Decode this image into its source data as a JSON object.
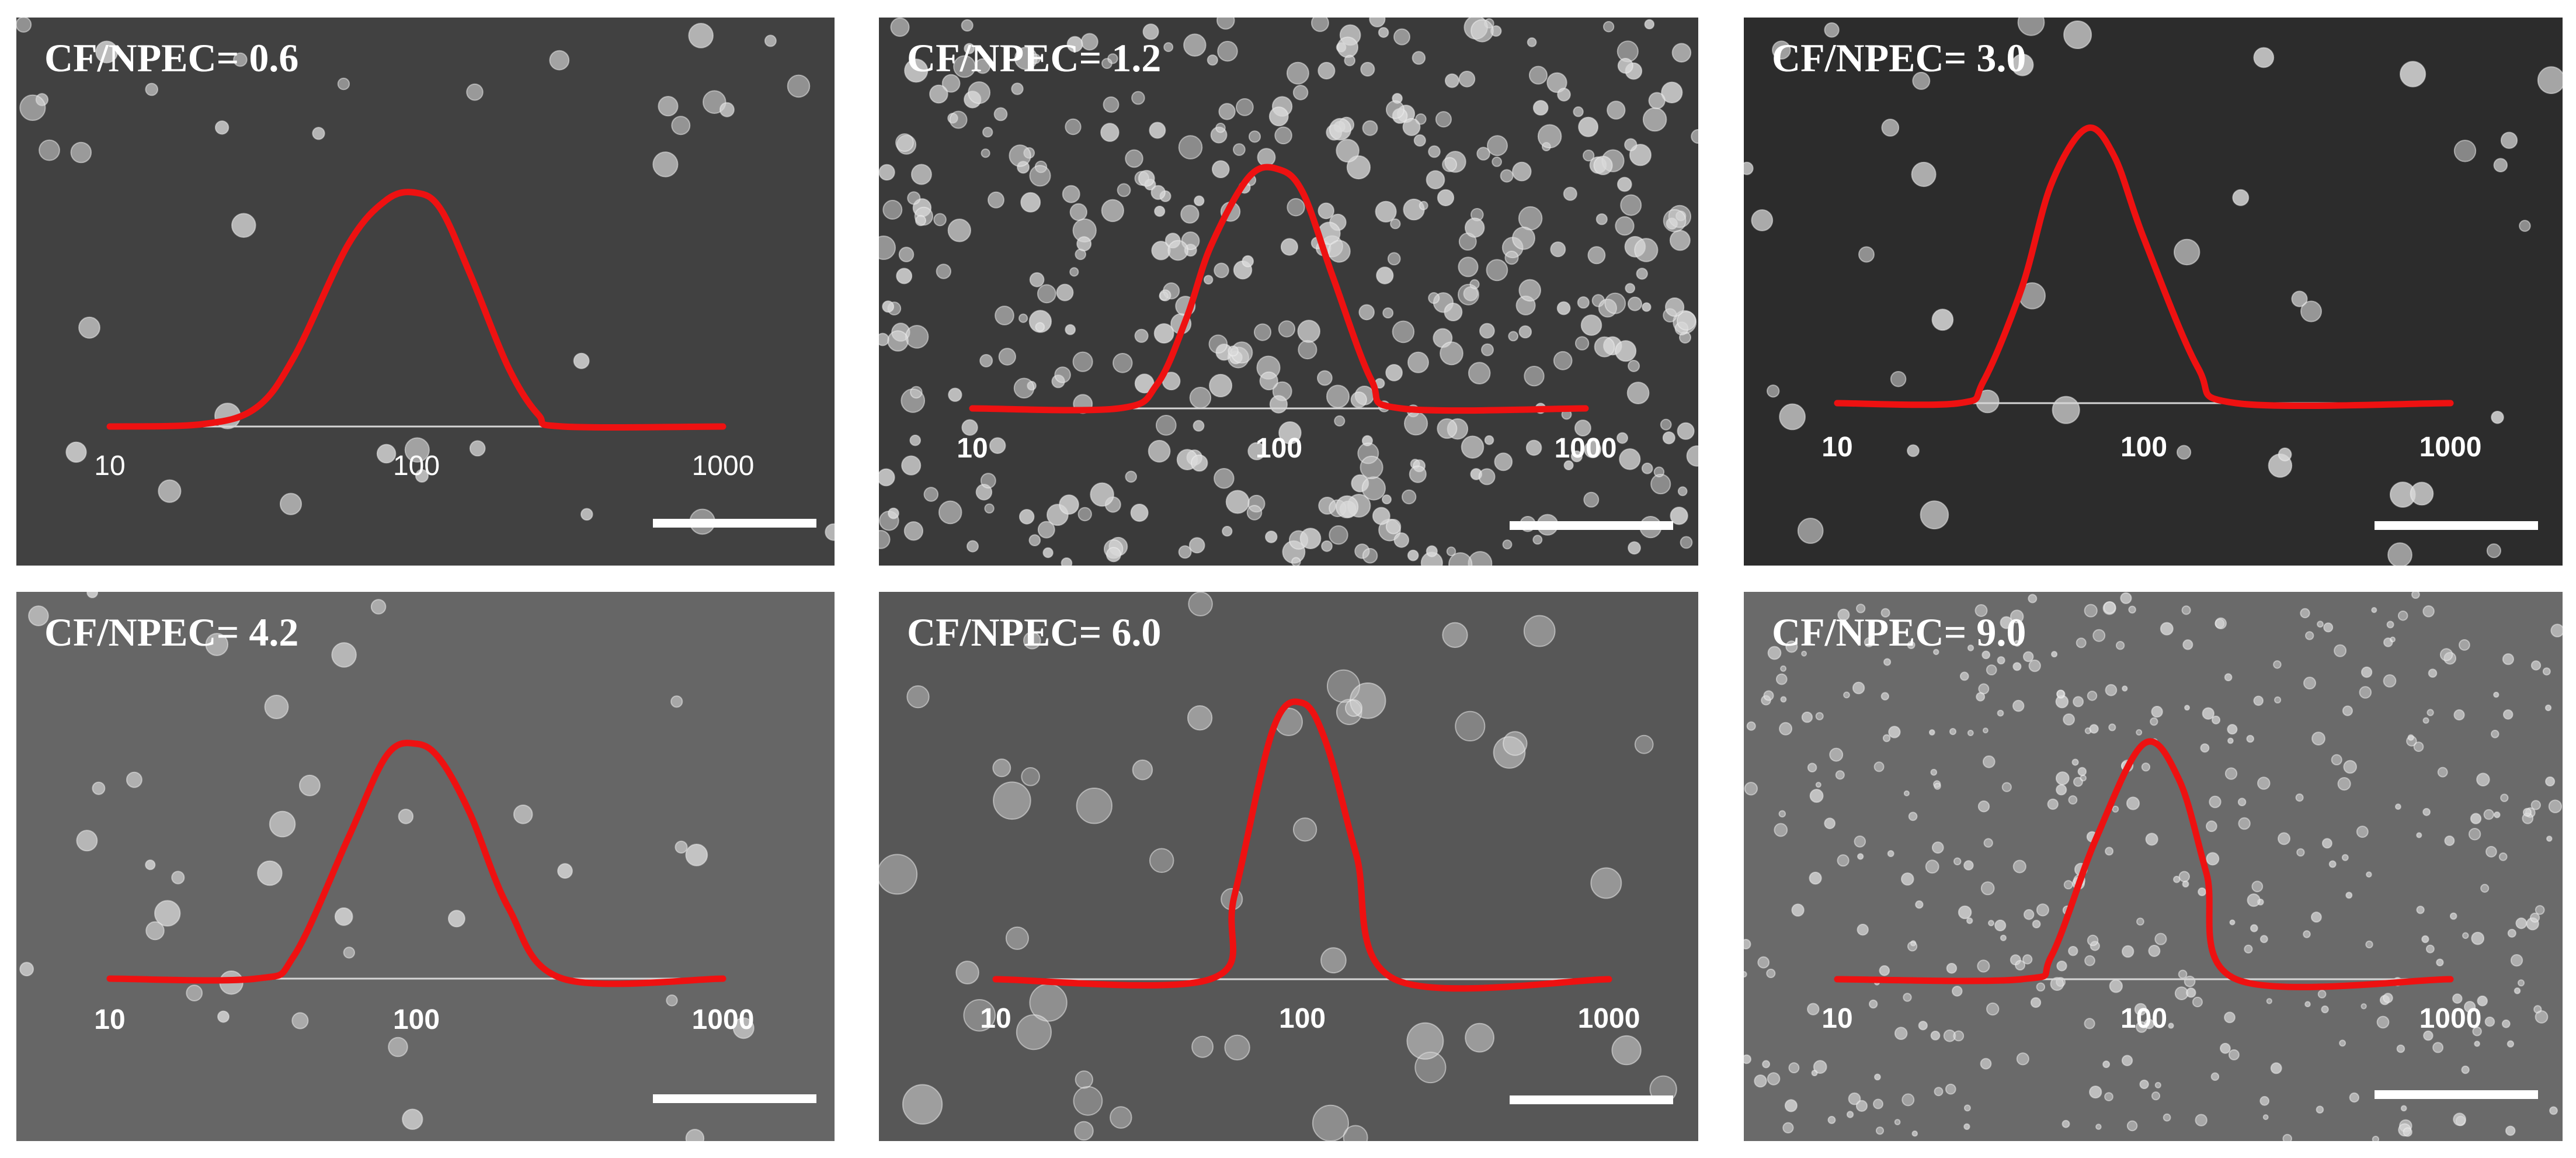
{
  "figure": {
    "panels": [
      {
        "title": "CF/NPEC= 0.6",
        "ticks": [
          "10",
          "100",
          "1000"
        ],
        "tick_style": "regular",
        "bg": "#414141"
      },
      {
        "title": "CF/NPEC= 1.2",
        "ticks": [
          "10",
          "100",
          "1000"
        ],
        "tick_style": "bold",
        "bg": "#3a3a3a"
      },
      {
        "title": "CF/NPEC= 3.0",
        "ticks": [
          "10",
          "100",
          "1000"
        ],
        "tick_style": "bold",
        "bg": "#2c2c2c"
      },
      {
        "title": "CF/NPEC= 4.2",
        "ticks": [
          "10",
          "100",
          "1000"
        ],
        "tick_style": "bold",
        "bg": "#666666"
      },
      {
        "title": "CF/NPEC= 6.0",
        "ticks": [
          "10",
          "100",
          "1000"
        ],
        "tick_style": "bold",
        "bg": "#575757"
      },
      {
        "title": "CF/NPEC= 9.0",
        "ticks": [
          "10",
          "100",
          "1000"
        ],
        "tick_style": "bold",
        "bg": "#6a6a6a"
      }
    ],
    "colors": {
      "curve": "#ee1111",
      "baseline": "#d6d6d6",
      "text": "#ffffff",
      "particle": "#d9d9d9"
    }
  },
  "chart_data": [
    {
      "type": "line",
      "title": "CF/NPEC= 0.6",
      "x_scale": "log",
      "xlim": [
        10,
        1000
      ],
      "x_ticks": [
        10,
        100,
        1000
      ],
      "series": [
        {
          "x": [
            10,
            20,
            30,
            40,
            60,
            80,
            100,
            120,
            150,
            200,
            250,
            300,
            1000
          ],
          "values": [
            0,
            0.01,
            0.08,
            0.3,
            0.78,
            0.97,
            1.0,
            0.93,
            0.65,
            0.25,
            0.05,
            0,
            0
          ]
        }
      ]
    },
    {
      "type": "line",
      "title": "CF/NPEC= 1.2",
      "x_scale": "log",
      "xlim": [
        10,
        1000
      ],
      "x_ticks": [
        10,
        100,
        1000
      ],
      "series": [
        {
          "x": [
            10,
            30,
            40,
            50,
            60,
            80,
            100,
            120,
            150,
            200,
            250,
            1000
          ],
          "values": [
            0,
            0,
            0.1,
            0.38,
            0.68,
            0.97,
            1.0,
            0.9,
            0.55,
            0.12,
            0,
            0
          ]
        }
      ]
    },
    {
      "type": "line",
      "title": "CF/NPEC= 3.0",
      "x_scale": "log",
      "xlim": [
        10,
        1000
      ],
      "x_ticks": [
        10,
        100,
        1000
      ],
      "series": [
        {
          "x": [
            10,
            25,
            30,
            40,
            50,
            65,
            80,
            100,
            150,
            200,
            1000
          ],
          "values": [
            0,
            0,
            0.08,
            0.42,
            0.8,
            1.0,
            0.9,
            0.6,
            0.13,
            0,
            0
          ]
        }
      ]
    },
    {
      "type": "line",
      "title": "CF/NPEC= 4.2",
      "x_scale": "log",
      "xlim": [
        10,
        1000
      ],
      "x_ticks": [
        10,
        100,
        1000
      ],
      "series": [
        {
          "x": [
            10,
            30,
            40,
            60,
            80,
            100,
            120,
            150,
            200,
            300,
            1000
          ],
          "values": [
            0,
            0,
            0.1,
            0.6,
            0.95,
            1.0,
            0.93,
            0.7,
            0.3,
            0,
            0
          ]
        }
      ]
    },
    {
      "type": "line",
      "title": "CF/NPEC= 6.0",
      "x_scale": "log",
      "xlim": [
        10,
        1000
      ],
      "x_ticks": [
        10,
        100,
        1000
      ],
      "series": [
        {
          "x": [
            10,
            50,
            60,
            80,
            100,
            120,
            150,
            200,
            1000
          ],
          "values": [
            0,
            0,
            0.3,
            0.9,
            1.0,
            0.85,
            0.45,
            0,
            0
          ]
        }
      ]
    },
    {
      "type": "line",
      "title": "CF/NPEC= 9.0",
      "x_scale": "log",
      "xlim": [
        10,
        1000
      ],
      "x_ticks": [
        10,
        100,
        1000
      ],
      "series": [
        {
          "x": [
            10,
            40,
            50,
            70,
            100,
            130,
            160,
            200,
            1000
          ],
          "values": [
            0,
            0,
            0.1,
            0.6,
            1.0,
            0.85,
            0.45,
            0,
            0
          ]
        }
      ]
    }
  ]
}
